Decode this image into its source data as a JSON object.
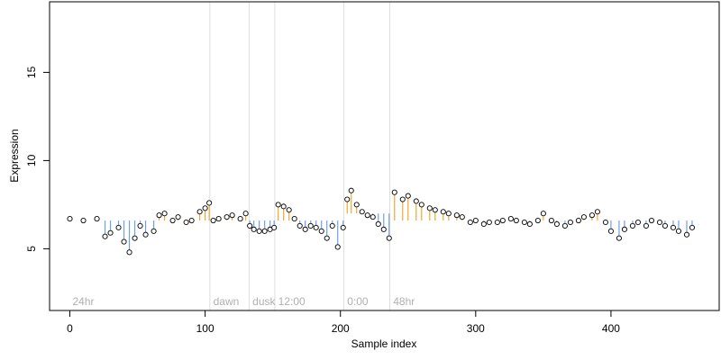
{
  "chart_data": {
    "type": "scatter",
    "title": "",
    "xlabel": "Sample index",
    "ylabel": "Expression",
    "xlim": [
      -15,
      480
    ],
    "ylim": [
      1.5,
      19
    ],
    "x_ticks": [
      0,
      100,
      200,
      300,
      400
    ],
    "y_ticks": [
      5,
      10,
      15
    ],
    "grid": false,
    "legend": "none",
    "baseline_color_above": "#f0a830",
    "baseline_color_below": "#6f9fe8",
    "point_fill": "#ffffff",
    "point_stroke": "#000000",
    "segments": [
      {
        "label": "24hr",
        "start": 0,
        "end": 103,
        "baseline": 6.6
      },
      {
        "label": "dawn",
        "start": 104,
        "end": 132,
        "baseline": 6.6
      },
      {
        "label": "dusk",
        "start": 133,
        "end": 151,
        "baseline": 6.6
      },
      {
        "label": "12:00",
        "start": 152,
        "end": 202,
        "baseline": 6.6
      },
      {
        "label": "0:00",
        "start": 203,
        "end": 236,
        "baseline": 7.0
      },
      {
        "label": "48hr",
        "start": 237,
        "end": 460,
        "baseline": 6.6
      }
    ],
    "series": [
      {
        "x": [
          0,
          10,
          20,
          26,
          30,
          36,
          40,
          44,
          48,
          52,
          56,
          62,
          66,
          70,
          76,
          80,
          86,
          90,
          96,
          100,
          103,
          106,
          110,
          116,
          120,
          126,
          130,
          133,
          136,
          140,
          144,
          148,
          151,
          154,
          158,
          162,
          166,
          170,
          174,
          178,
          182,
          186,
          190,
          194,
          198,
          202,
          205,
          208,
          212,
          216,
          220,
          224,
          228,
          232,
          236,
          240,
          246,
          250,
          256,
          260,
          266,
          270,
          276,
          280,
          286,
          290,
          296,
          300,
          306,
          310,
          316,
          320,
          326,
          330,
          336,
          340,
          346,
          350,
          356,
          360,
          366,
          370,
          376,
          380,
          386,
          390,
          396,
          400,
          406,
          410,
          416,
          420,
          426,
          430,
          436,
          440,
          446,
          450,
          456,
          460
        ],
        "y": [
          6.7,
          6.6,
          6.7,
          5.7,
          5.9,
          6.2,
          5.4,
          4.8,
          5.6,
          6.3,
          5.8,
          6.0,
          6.9,
          7.0,
          6.6,
          6.8,
          6.5,
          6.6,
          7.1,
          7.3,
          7.6,
          6.6,
          6.7,
          6.8,
          6.9,
          6.7,
          7.0,
          6.3,
          6.1,
          6.0,
          6.0,
          6.1,
          6.2,
          7.5,
          7.4,
          7.2,
          6.7,
          6.3,
          6.1,
          6.3,
          6.2,
          6.0,
          5.6,
          6.3,
          5.1,
          6.2,
          7.8,
          8.3,
          7.5,
          7.1,
          6.9,
          6.8,
          6.4,
          6.1,
          5.6,
          8.2,
          7.8,
          8.0,
          7.7,
          7.5,
          7.3,
          7.2,
          7.1,
          7.0,
          6.9,
          6.8,
          6.5,
          6.6,
          6.4,
          6.5,
          6.5,
          6.6,
          6.7,
          6.6,
          6.5,
          6.4,
          6.6,
          7.0,
          6.6,
          6.4,
          6.3,
          6.5,
          6.6,
          6.8,
          6.9,
          7.1,
          6.5,
          6.0,
          5.6,
          6.1,
          6.3,
          6.5,
          6.3,
          6.6,
          6.5,
          6.3,
          6.2,
          6.0,
          5.8,
          6.2
        ]
      }
    ]
  }
}
